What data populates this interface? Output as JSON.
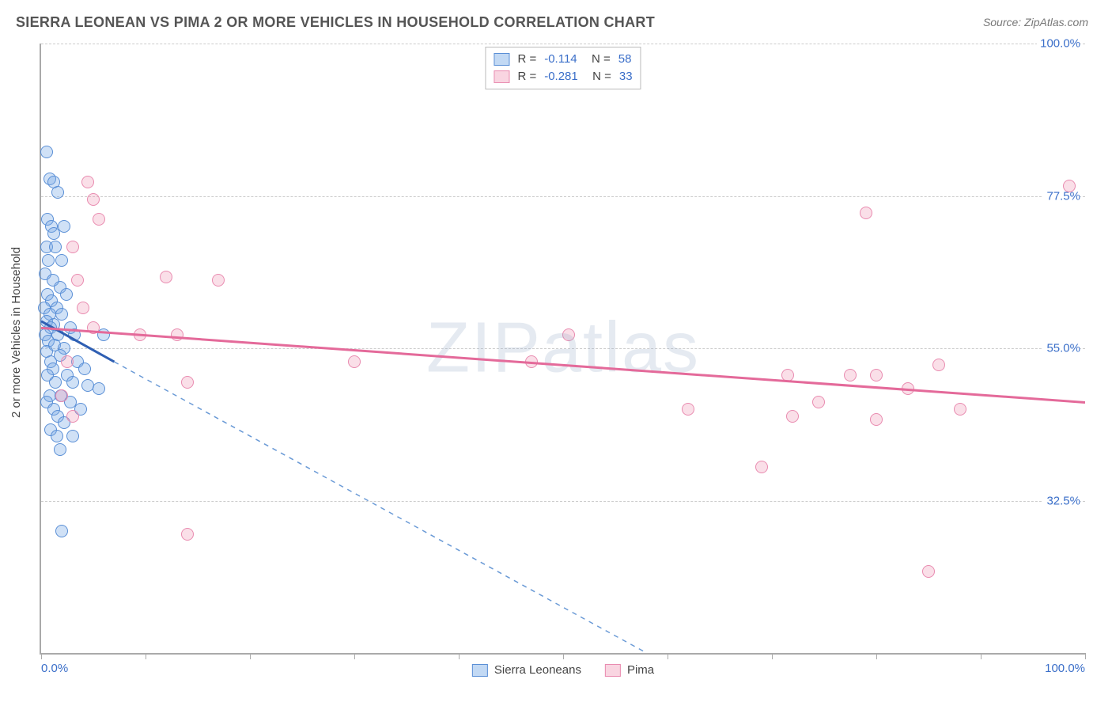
{
  "title": "SIERRA LEONEAN VS PIMA 2 OR MORE VEHICLES IN HOUSEHOLD CORRELATION CHART",
  "source": "Source: ZipAtlas.com",
  "ylabel": "2 or more Vehicles in Household",
  "watermark": "ZIPatlas",
  "chart": {
    "type": "scatter",
    "xlim": [
      0,
      100
    ],
    "ylim": [
      10,
      100
    ],
    "y_gridlines": [
      32.5,
      55.0,
      77.5,
      100.0
    ],
    "y_tick_labels": [
      "32.5%",
      "55.0%",
      "77.5%",
      "100.0%"
    ],
    "x_tick_positions": [
      0,
      10,
      20,
      30,
      40,
      50,
      60,
      70,
      80,
      90,
      100
    ],
    "x_tick_labels_shown": {
      "0": "0.0%",
      "100": "100.0%"
    },
    "tick_label_color": "#3b6fc9",
    "grid_color": "#cccccc",
    "axis_color": "#aaaaaa",
    "background_color": "#ffffff",
    "marker_radius": 8,
    "series": {
      "blue": {
        "label": "Sierra Leoneans",
        "fill_color": "rgba(120,170,230,0.35)",
        "border_color": "#5a8fd6",
        "R": "-0.114",
        "N": "58",
        "trend": {
          "x1": 0,
          "y1": 59,
          "x2": 7,
          "y2": 53,
          "dash_x2": 58,
          "dash_y2": 10,
          "color": "#2f5fb3",
          "width": 3
        }
      },
      "pink": {
        "label": "Pima",
        "fill_color": "rgba(240,150,180,0.30)",
        "border_color": "#e98bb0",
        "R": "-0.281",
        "N": "33",
        "trend": {
          "x1": 0,
          "y1": 58,
          "x2": 100,
          "y2": 47,
          "color": "#e46a9a",
          "width": 3
        }
      }
    }
  },
  "points_blue": [
    [
      0.5,
      84
    ],
    [
      0.8,
      80
    ],
    [
      1.2,
      79.5
    ],
    [
      1.6,
      78
    ],
    [
      0.6,
      74
    ],
    [
      1.0,
      73
    ],
    [
      2.2,
      73
    ],
    [
      1.2,
      72
    ],
    [
      0.5,
      70
    ],
    [
      1.4,
      70
    ],
    [
      0.7,
      68
    ],
    [
      2.0,
      68
    ],
    [
      0.4,
      66
    ],
    [
      1.1,
      65
    ],
    [
      1.8,
      64
    ],
    [
      0.6,
      63
    ],
    [
      2.4,
      63
    ],
    [
      1.0,
      62
    ],
    [
      0.3,
      61
    ],
    [
      1.5,
      61
    ],
    [
      0.8,
      60
    ],
    [
      2.0,
      60
    ],
    [
      0.5,
      59
    ],
    [
      1.2,
      58.5
    ],
    [
      0.9,
      58
    ],
    [
      2.8,
      58
    ],
    [
      0.4,
      57
    ],
    [
      1.6,
      57
    ],
    [
      3.2,
      57
    ],
    [
      6.0,
      57
    ],
    [
      0.7,
      56
    ],
    [
      1.3,
      55.5
    ],
    [
      2.2,
      55
    ],
    [
      0.5,
      54.5
    ],
    [
      1.8,
      54
    ],
    [
      0.9,
      53
    ],
    [
      3.5,
      53
    ],
    [
      4.2,
      52
    ],
    [
      1.1,
      52
    ],
    [
      0.6,
      51
    ],
    [
      2.5,
      51
    ],
    [
      1.4,
      50
    ],
    [
      3.0,
      50
    ],
    [
      4.5,
      49.5
    ],
    [
      5.5,
      49
    ],
    [
      0.8,
      48
    ],
    [
      1.9,
      48
    ],
    [
      0.5,
      47
    ],
    [
      2.8,
      47
    ],
    [
      1.2,
      46
    ],
    [
      3.8,
      46
    ],
    [
      1.6,
      45
    ],
    [
      2.2,
      44
    ],
    [
      0.9,
      43
    ],
    [
      1.5,
      42
    ],
    [
      3.0,
      42
    ],
    [
      1.8,
      40
    ],
    [
      2.0,
      28
    ]
  ],
  "points_pink": [
    [
      4.5,
      79.5
    ],
    [
      98.5,
      79
    ],
    [
      5.0,
      77
    ],
    [
      5.5,
      74
    ],
    [
      79,
      75
    ],
    [
      3.0,
      70
    ],
    [
      3.5,
      65
    ],
    [
      12.0,
      65.5
    ],
    [
      17.0,
      65
    ],
    [
      4.0,
      61
    ],
    [
      5.0,
      58
    ],
    [
      9.5,
      57
    ],
    [
      13.0,
      57
    ],
    [
      50.5,
      57
    ],
    [
      2.5,
      53
    ],
    [
      30.0,
      53
    ],
    [
      47.0,
      53
    ],
    [
      86.0,
      52.5
    ],
    [
      71.5,
      51
    ],
    [
      77.5,
      51
    ],
    [
      80.0,
      51
    ],
    [
      14.0,
      50
    ],
    [
      83.0,
      49
    ],
    [
      2.0,
      48
    ],
    [
      74.5,
      47
    ],
    [
      88.0,
      46
    ],
    [
      62.0,
      46
    ],
    [
      72.0,
      45
    ],
    [
      80.0,
      44.5
    ],
    [
      69.0,
      37.5
    ],
    [
      14.0,
      27.5
    ],
    [
      85.0,
      22
    ],
    [
      3.0,
      45
    ]
  ]
}
